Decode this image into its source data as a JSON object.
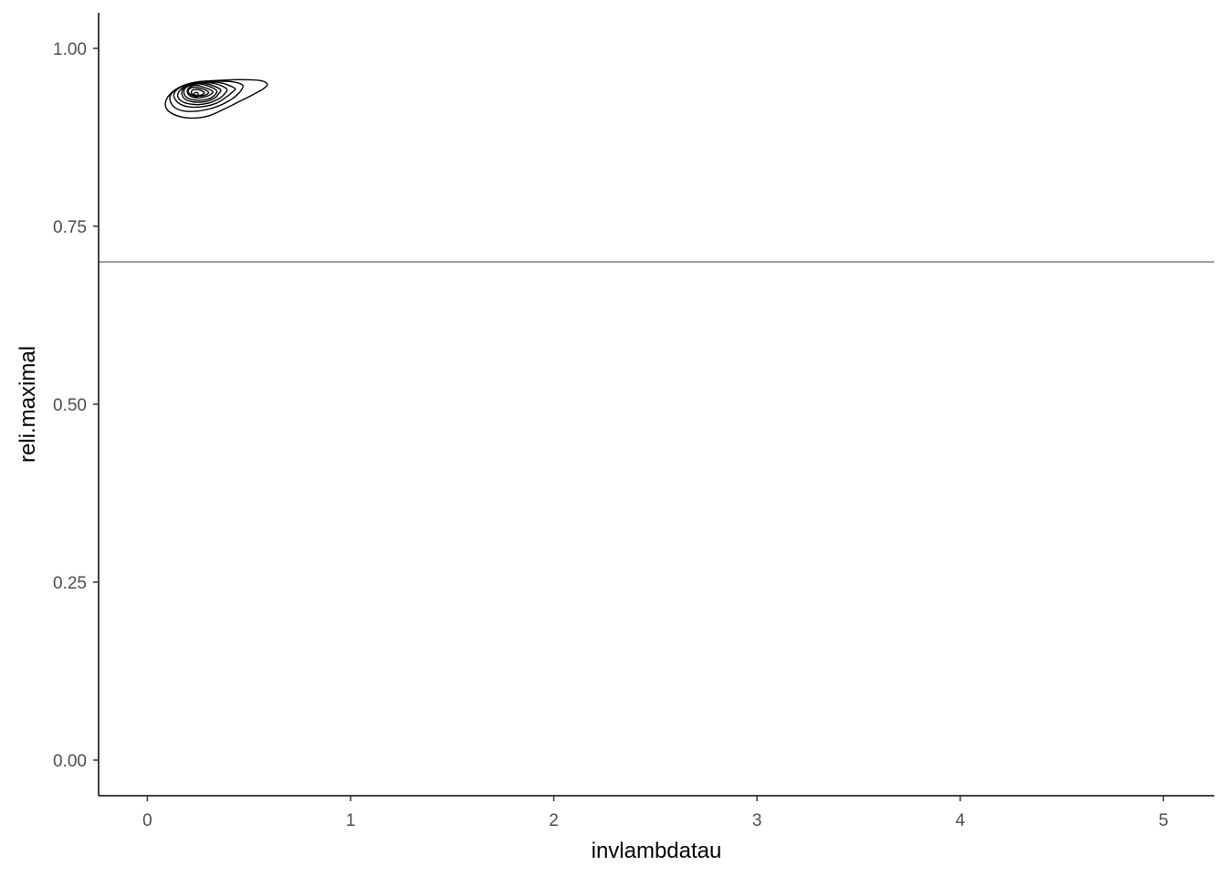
{
  "chart_data": {
    "type": "contour",
    "xlabel": "invlambdatau",
    "ylabel": "reli.maximal",
    "xlim": [
      -0.24,
      5.25
    ],
    "ylim": [
      -0.05,
      1.05
    ],
    "x_ticks": [
      0,
      1,
      2,
      3,
      4,
      5
    ],
    "x_tick_labels": [
      "0",
      "1",
      "2",
      "3",
      "4",
      "5"
    ],
    "y_ticks": [
      0.0,
      0.25,
      0.5,
      0.75,
      1.0
    ],
    "y_tick_labels": [
      "0.00",
      "0.25",
      "0.50",
      "0.75",
      "1.00"
    ],
    "grid": false,
    "hline": {
      "y": 0.7,
      "color": "#808080"
    },
    "density_peak": {
      "x": 0.24,
      "y": 0.935
    },
    "contour_levels": [
      [
        [
          0.59,
          0.95
        ],
        [
          0.55,
          0.955
        ],
        [
          0.45,
          0.956
        ],
        [
          0.35,
          0.955
        ],
        [
          0.25,
          0.953
        ],
        [
          0.18,
          0.948
        ],
        [
          0.12,
          0.938
        ],
        [
          0.09,
          0.925
        ],
        [
          0.1,
          0.913
        ],
        [
          0.15,
          0.905
        ],
        [
          0.22,
          0.902
        ],
        [
          0.3,
          0.905
        ],
        [
          0.38,
          0.915
        ],
        [
          0.45,
          0.925
        ],
        [
          0.52,
          0.935
        ],
        [
          0.57,
          0.943
        ]
      ],
      [
        [
          0.47,
          0.948
        ],
        [
          0.42,
          0.953
        ],
        [
          0.34,
          0.954
        ],
        [
          0.25,
          0.953
        ],
        [
          0.18,
          0.948
        ],
        [
          0.13,
          0.94
        ],
        [
          0.11,
          0.93
        ],
        [
          0.13,
          0.918
        ],
        [
          0.18,
          0.912
        ],
        [
          0.25,
          0.912
        ],
        [
          0.33,
          0.917
        ],
        [
          0.4,
          0.926
        ],
        [
          0.45,
          0.937
        ]
      ],
      [
        [
          0.43,
          0.944
        ],
        [
          0.37,
          0.951
        ],
        [
          0.3,
          0.953
        ],
        [
          0.22,
          0.951
        ],
        [
          0.16,
          0.945
        ],
        [
          0.13,
          0.935
        ],
        [
          0.15,
          0.924
        ],
        [
          0.2,
          0.918
        ],
        [
          0.27,
          0.918
        ],
        [
          0.34,
          0.923
        ],
        [
          0.39,
          0.932
        ],
        [
          0.42,
          0.939
        ]
      ],
      [
        [
          0.39,
          0.943
        ],
        [
          0.34,
          0.95
        ],
        [
          0.27,
          0.952
        ],
        [
          0.2,
          0.949
        ],
        [
          0.16,
          0.941
        ],
        [
          0.15,
          0.932
        ],
        [
          0.18,
          0.924
        ],
        [
          0.24,
          0.921
        ],
        [
          0.3,
          0.923
        ],
        [
          0.35,
          0.929
        ],
        [
          0.38,
          0.936
        ]
      ],
      [
        [
          0.36,
          0.942
        ],
        [
          0.31,
          0.949
        ],
        [
          0.25,
          0.951
        ],
        [
          0.19,
          0.947
        ],
        [
          0.17,
          0.939
        ],
        [
          0.18,
          0.93
        ],
        [
          0.22,
          0.925
        ],
        [
          0.28,
          0.925
        ],
        [
          0.33,
          0.93
        ],
        [
          0.35,
          0.936
        ]
      ],
      [
        [
          0.34,
          0.941
        ],
        [
          0.29,
          0.948
        ],
        [
          0.24,
          0.95
        ],
        [
          0.19,
          0.945
        ],
        [
          0.18,
          0.937
        ],
        [
          0.2,
          0.93
        ],
        [
          0.25,
          0.927
        ],
        [
          0.3,
          0.929
        ],
        [
          0.33,
          0.934
        ]
      ],
      [
        [
          0.32,
          0.94
        ],
        [
          0.27,
          0.946
        ],
        [
          0.23,
          0.948
        ],
        [
          0.2,
          0.943
        ],
        [
          0.2,
          0.936
        ],
        [
          0.23,
          0.931
        ],
        [
          0.27,
          0.931
        ],
        [
          0.31,
          0.935
        ]
      ],
      [
        [
          0.3,
          0.939
        ],
        [
          0.26,
          0.944
        ],
        [
          0.22,
          0.945
        ],
        [
          0.2,
          0.94
        ],
        [
          0.22,
          0.934
        ],
        [
          0.26,
          0.933
        ],
        [
          0.29,
          0.935
        ]
      ],
      [
        [
          0.28,
          0.938
        ],
        [
          0.25,
          0.942
        ],
        [
          0.22,
          0.941
        ],
        [
          0.22,
          0.936
        ],
        [
          0.25,
          0.934
        ],
        [
          0.27,
          0.935
        ]
      ]
    ]
  }
}
